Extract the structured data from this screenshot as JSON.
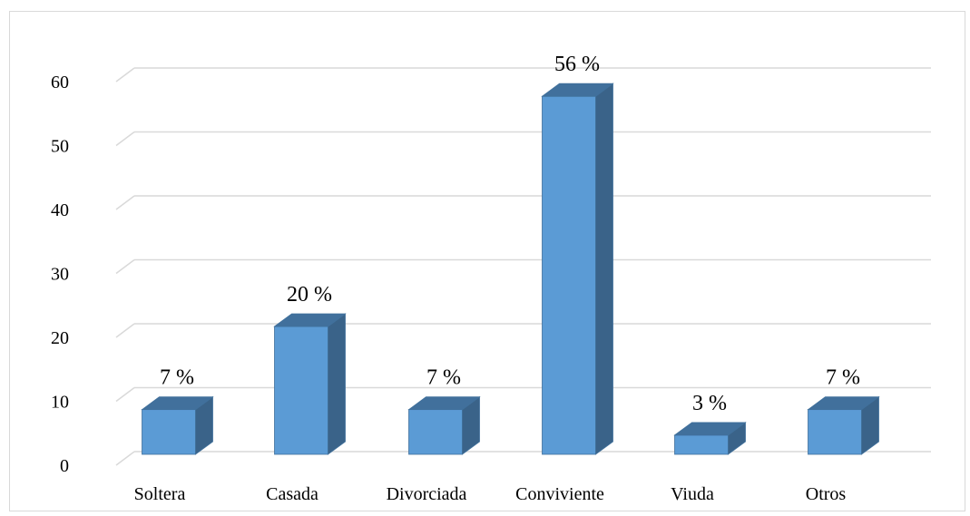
{
  "chart_data": {
    "type": "bar",
    "style": "3d-column",
    "categories": [
      "Soltera",
      "Casada",
      "Divorciada",
      "Conviviente",
      "Viuda",
      "Otros"
    ],
    "values": [
      7,
      20,
      7,
      56,
      3,
      7
    ],
    "data_labels": [
      "7 %",
      "20 %",
      "7 %",
      "56 %",
      "3 %",
      "7 %"
    ],
    "title": "",
    "xlabel": "",
    "ylabel": "",
    "ylim": [
      0,
      60
    ],
    "yticks": [
      "0",
      "10",
      "20",
      "30",
      "40",
      "50",
      "60"
    ],
    "grid": true,
    "legend": "none",
    "colors": {
      "bar_front": "#5b9bd5",
      "bar_side": "#3a6389",
      "bar_top": "#41709c",
      "bar_outline": "#41719c",
      "grid": "#d9d9d9",
      "frame": "#d9d9d9"
    }
  }
}
